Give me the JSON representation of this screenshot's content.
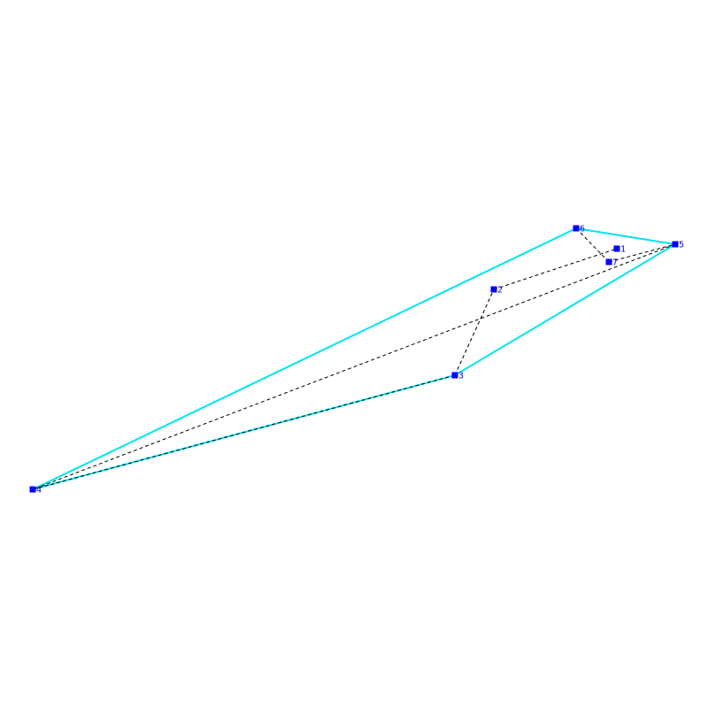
{
  "colors": {
    "background": "#ffffff",
    "hull": "#00e5ee",
    "path": "#000000",
    "node": "#0000ff",
    "label": "#0000ff"
  },
  "nodes": [
    {
      "id": "1",
      "label": "1"
    },
    {
      "id": "2",
      "label": "2"
    },
    {
      "id": "3",
      "label": "3"
    },
    {
      "id": "4",
      "label": "4"
    },
    {
      "id": "5",
      "label": "5"
    },
    {
      "id": "6",
      "label": "6"
    },
    {
      "id": "7",
      "label": "7"
    }
  ],
  "hull_edges": [
    [
      "4",
      "6"
    ],
    [
      "6",
      "5"
    ],
    [
      "5",
      "3"
    ],
    [
      "3",
      "4"
    ]
  ],
  "path_edges": [
    [
      "6",
      "7"
    ],
    [
      "7",
      "5"
    ],
    [
      "5",
      "4"
    ],
    [
      "4",
      "3"
    ],
    [
      "3",
      "2"
    ],
    [
      "2",
      "1"
    ]
  ]
}
